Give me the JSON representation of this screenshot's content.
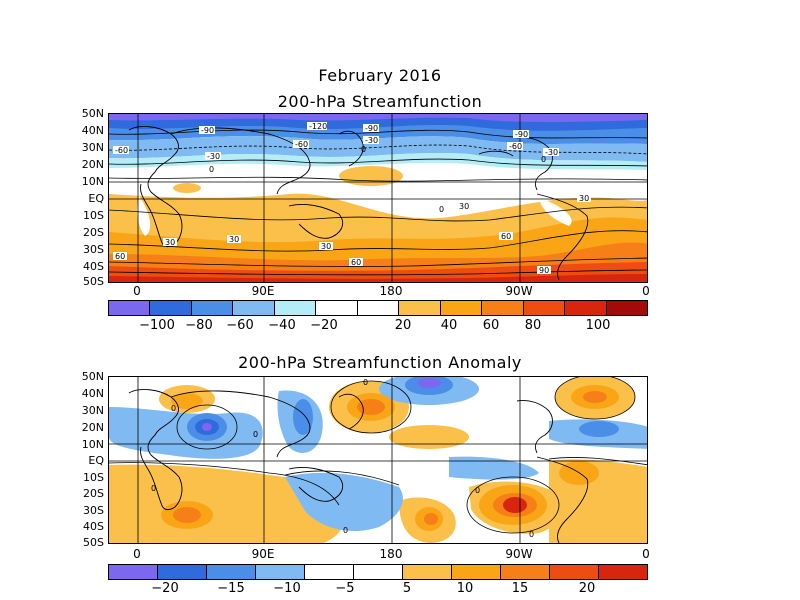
{
  "titles": {
    "main": "February 2016",
    "panel1": "200-hPa Streamfunction",
    "panel2": "200-hPa Streamfunction Anomaly"
  },
  "lat_labels": [
    "50N",
    "40N",
    "30N",
    "20N",
    "10N",
    "EQ",
    "10S",
    "20S",
    "30S",
    "40S",
    "50S"
  ],
  "lon_labels": [
    "0",
    "90E",
    "180",
    "90W",
    "0"
  ],
  "panel1": {
    "colorbar_colors": [
      "#7b68ee",
      "#2f6bdc",
      "#4a8ee8",
      "#7fbaf2",
      "#b4ecf8",
      "#ffffff",
      "#ffffff",
      "#fbc04a",
      "#f9a516",
      "#f67f18",
      "#ee4d12",
      "#d7250e",
      "#a30a0a"
    ],
    "colorbar_labels": [
      "−100",
      "−80",
      "−60",
      "−40",
      "−20",
      "20",
      "40",
      "60",
      "80",
      "100"
    ],
    "contour_labels": [
      "-90",
      "-120",
      "-90",
      "-60",
      "-30",
      "-60",
      "-30",
      "-90",
      "-60",
      "-30",
      "0",
      "0",
      "0",
      "30",
      "30",
      "30",
      "30",
      "60",
      "60",
      "60",
      "90",
      "30",
      "0"
    ]
  },
  "panel2": {
    "colorbar_colors": [
      "#7b68ee",
      "#2f6bdc",
      "#4a8ee8",
      "#7fbaf2",
      "#ffffff",
      "#ffffff",
      "#fbc04a",
      "#f9a516",
      "#f67f18",
      "#ee4d12",
      "#d7250e"
    ],
    "colorbar_labels": [
      "−20",
      "−15",
      "−10",
      "−5",
      "5",
      "10",
      "15",
      "20"
    ],
    "contour_labels": [
      "0",
      "0",
      "0",
      "0",
      "0",
      "0",
      "0"
    ]
  }
}
